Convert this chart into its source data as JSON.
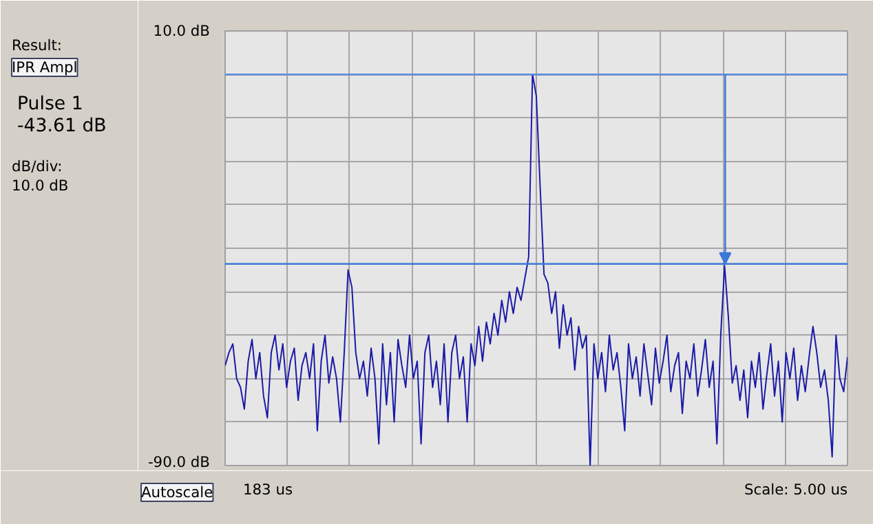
{
  "chart_data": {
    "type": "line",
    "annotations": [
      "Result:",
      "IPR Ampl",
      "dB/div:",
      "10.0 dB",
      "Pulse 1",
      "-43.61 dB",
      "Autoscale",
      "Scale: 5.00 us",
      "183 us"
    ],
    "categories": [
      null,
      null,
      null,
      null,
      null,
      null,
      null,
      null,
      null,
      null,
      null,
      null,
      null,
      null,
      null,
      null,
      null,
      null,
      null,
      null,
      null,
      null,
      null,
      null,
      null,
      null,
      null,
      null,
      null,
      null,
      null,
      null,
      null,
      null,
      null,
      null,
      null,
      null,
      null,
      null,
      null,
      null,
      null,
      null,
      null,
      null,
      null,
      null,
      null,
      null,
      null,
      null,
      null,
      null,
      null,
      null,
      null,
      null,
      null,
      null,
      null,
      null,
      null,
      null,
      null,
      null,
      null,
      null,
      null,
      null,
      null,
      null,
      null,
      null,
      null,
      null,
      null,
      null,
      null,
      null,
      null,
      null,
      null,
      null,
      null,
      null,
      null,
      null,
      null,
      null,
      null,
      null,
      null,
      null,
      null,
      null,
      null,
      null,
      null,
      null,
      null,
      null,
      null,
      null,
      null,
      null,
      null,
      null,
      null,
      null,
      null,
      null,
      null,
      null,
      null,
      null,
      null,
      null,
      null,
      null,
      null,
      null,
      null,
      null,
      null,
      null,
      null,
      null,
      null,
      null,
      null,
      null,
      null,
      null,
      null,
      null,
      null,
      null,
      null,
      null,
      null,
      null,
      null,
      null,
      null,
      null,
      null,
      null,
      null,
      null,
      null,
      null,
      null,
      null,
      null,
      null,
      null,
      null,
      null,
      null,
      null,
      null,
      null
    ],
    "ylim": [
      -90,
      10
    ],
    "yticks": [
      {
        "value": 10,
        "label": "10.0 dB"
      },
      {
        "value": 0,
        "label": null
      },
      {
        "value": -10,
        "label": null
      },
      {
        "value": -20,
        "label": null
      },
      {
        "value": -30,
        "label": null
      },
      {
        "value": -40,
        "label": null
      },
      {
        "value": -50,
        "label": null
      },
      {
        "value": -60,
        "label": null
      },
      {
        "value": -70,
        "label": null
      },
      {
        "value": -80,
        "label": null
      },
      {
        "value": -90,
        "label": "-90.0 dB"
      }
    ],
    "grid": true,
    "ref_lines": [
      {
        "axis": "y",
        "value": 0,
        "color": "#5b8ee0"
      },
      {
        "axis": "y",
        "value": -43.61,
        "color": "#3c78d8"
      }
    ],
    "series": [
      {
        "color": "#1a1aa8",
        "values": [
          -67,
          -64,
          -62,
          -70,
          -72,
          -77,
          -66,
          -61,
          -70,
          -64,
          -74,
          -79,
          -64,
          -60,
          -68,
          -62,
          -72,
          -66,
          -63,
          -75,
          -67,
          -64,
          -70,
          -62,
          -82,
          -66,
          -60,
          -71,
          -65,
          -70,
          -80,
          -64,
          -45,
          -49,
          -64,
          -70,
          -66,
          -74,
          -63,
          -70,
          -85,
          -62,
          -76,
          -64,
          -80,
          -61,
          -67,
          -72,
          -60,
          -70,
          -66,
          -85,
          -64,
          -60,
          -72,
          -66,
          -76,
          -62,
          -80,
          -64,
          -60,
          -70,
          -65,
          -80,
          -62,
          -67,
          -58,
          -66,
          -57,
          -62,
          -55,
          -60,
          -52,
          -57,
          -50,
          -55,
          -49,
          -52,
          -47,
          -42,
          0,
          -5,
          -26,
          -46,
          -48,
          -55,
          -50,
          -63,
          -53,
          -60,
          -56,
          -68,
          -58,
          -63,
          -60,
          -90,
          -62,
          -70,
          -64,
          -73,
          -60,
          -68,
          -64,
          -72,
          -82,
          -62,
          -70,
          -65,
          -74,
          -62,
          -69,
          -76,
          -63,
          -71,
          -66,
          -60,
          -73,
          -67,
          -64,
          -78,
          -66,
          -70,
          -62,
          -74,
          -68,
          -61,
          -72,
          -66,
          -85,
          -60,
          -44,
          -56,
          -71,
          -67,
          -75,
          -68,
          -79,
          -66,
          -72,
          -64,
          -77,
          -69,
          -62,
          -74,
          -66,
          -80,
          -64,
          -70,
          -63,
          -75,
          -67,
          -73,
          -65,
          -58,
          -64,
          -72,
          -68,
          -75,
          -88,
          -60,
          -70,
          -73,
          -65
        ]
      }
    ]
  }
}
